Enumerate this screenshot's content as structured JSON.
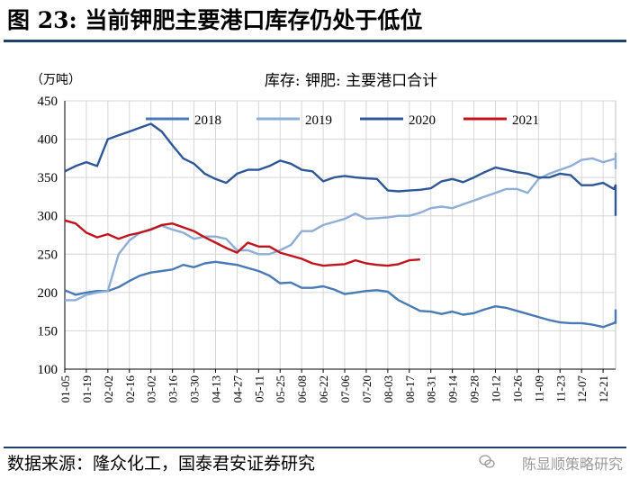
{
  "figure": {
    "title": "图 23:  当前钾肥主要港口库存仍处于低位",
    "source": "数据来源：隆众化工，国泰君安证券研究",
    "watermark": "陈显顺策略研究"
  },
  "chart_data": {
    "type": "line",
    "title": "库存: 钾肥: 主要港口合计",
    "unit": "（万吨）",
    "ylim": [
      100,
      450
    ],
    "yticks": [
      100,
      150,
      200,
      250,
      300,
      350,
      400,
      450
    ],
    "xtick_labels": [
      "01-05",
      "01-19",
      "02-02",
      "02-16",
      "03-02",
      "03-16",
      "03-30",
      "04-13",
      "04-27",
      "05-11",
      "05-25",
      "06-08",
      "06-22",
      "07-06",
      "07-20",
      "08-03",
      "08-17",
      "08-31",
      "09-14",
      "09-28",
      "10-12",
      "10-26",
      "11-09",
      "11-23",
      "12-07",
      "12-21"
    ],
    "grid": true,
    "legend_position": "top",
    "series": [
      {
        "name": "2018",
        "color": "#4a7ab5",
        "values": [
          203,
          197,
          200,
          202,
          202,
          207,
          215,
          222,
          226,
          228,
          230,
          236,
          233,
          238,
          240,
          238,
          236,
          232,
          228,
          222,
          212,
          213,
          206,
          206,
          208,
          204,
          198,
          200,
          202,
          203,
          201,
          190,
          183,
          176,
          175,
          172,
          175,
          171,
          173,
          178,
          182,
          180,
          176,
          172,
          168,
          164,
          161,
          160,
          160,
          158,
          155,
          160,
          162,
          162,
          160,
          160,
          170,
          178
        ]
      },
      {
        "name": "2019",
        "color": "#8eaed6",
        "values": [
          190,
          190,
          197,
          200,
          202,
          250,
          268,
          278,
          283,
          287,
          282,
          278,
          270,
          273,
          273,
          270,
          255,
          255,
          250,
          250,
          255,
          262,
          280,
          280,
          288,
          292,
          296,
          303,
          296,
          297,
          298,
          300,
          300,
          304,
          310,
          312,
          310,
          315,
          320,
          325,
          330,
          335,
          335,
          330,
          348,
          355,
          360,
          365,
          373,
          375,
          370,
          374,
          374,
          370,
          365,
          362,
          368,
          375,
          381,
          370,
          367,
          367
        ]
      },
      {
        "name": "2020",
        "color": "#2f5797",
        "values": [
          358,
          365,
          370,
          365,
          400,
          405,
          410,
          415,
          420,
          410,
          392,
          375,
          368,
          355,
          348,
          343,
          355,
          360,
          360,
          365,
          372,
          368,
          360,
          358,
          345,
          350,
          352,
          350,
          349,
          348,
          333,
          332,
          333,
          334,
          336,
          345,
          348,
          344,
          350,
          357,
          363,
          360,
          357,
          355,
          350,
          350,
          355,
          353,
          340,
          340,
          343,
          335,
          340,
          330,
          330,
          312,
          300
        ]
      },
      {
        "name": "2021",
        "color": "#c0141c",
        "values": [
          294,
          290,
          278,
          272,
          276,
          270,
          275,
          278,
          282,
          288,
          290,
          285,
          280,
          272,
          265,
          258,
          252,
          265,
          260,
          260,
          252,
          248,
          244,
          238,
          235,
          236,
          237,
          242,
          238,
          236,
          235,
          237,
          242,
          243
        ]
      }
    ]
  }
}
